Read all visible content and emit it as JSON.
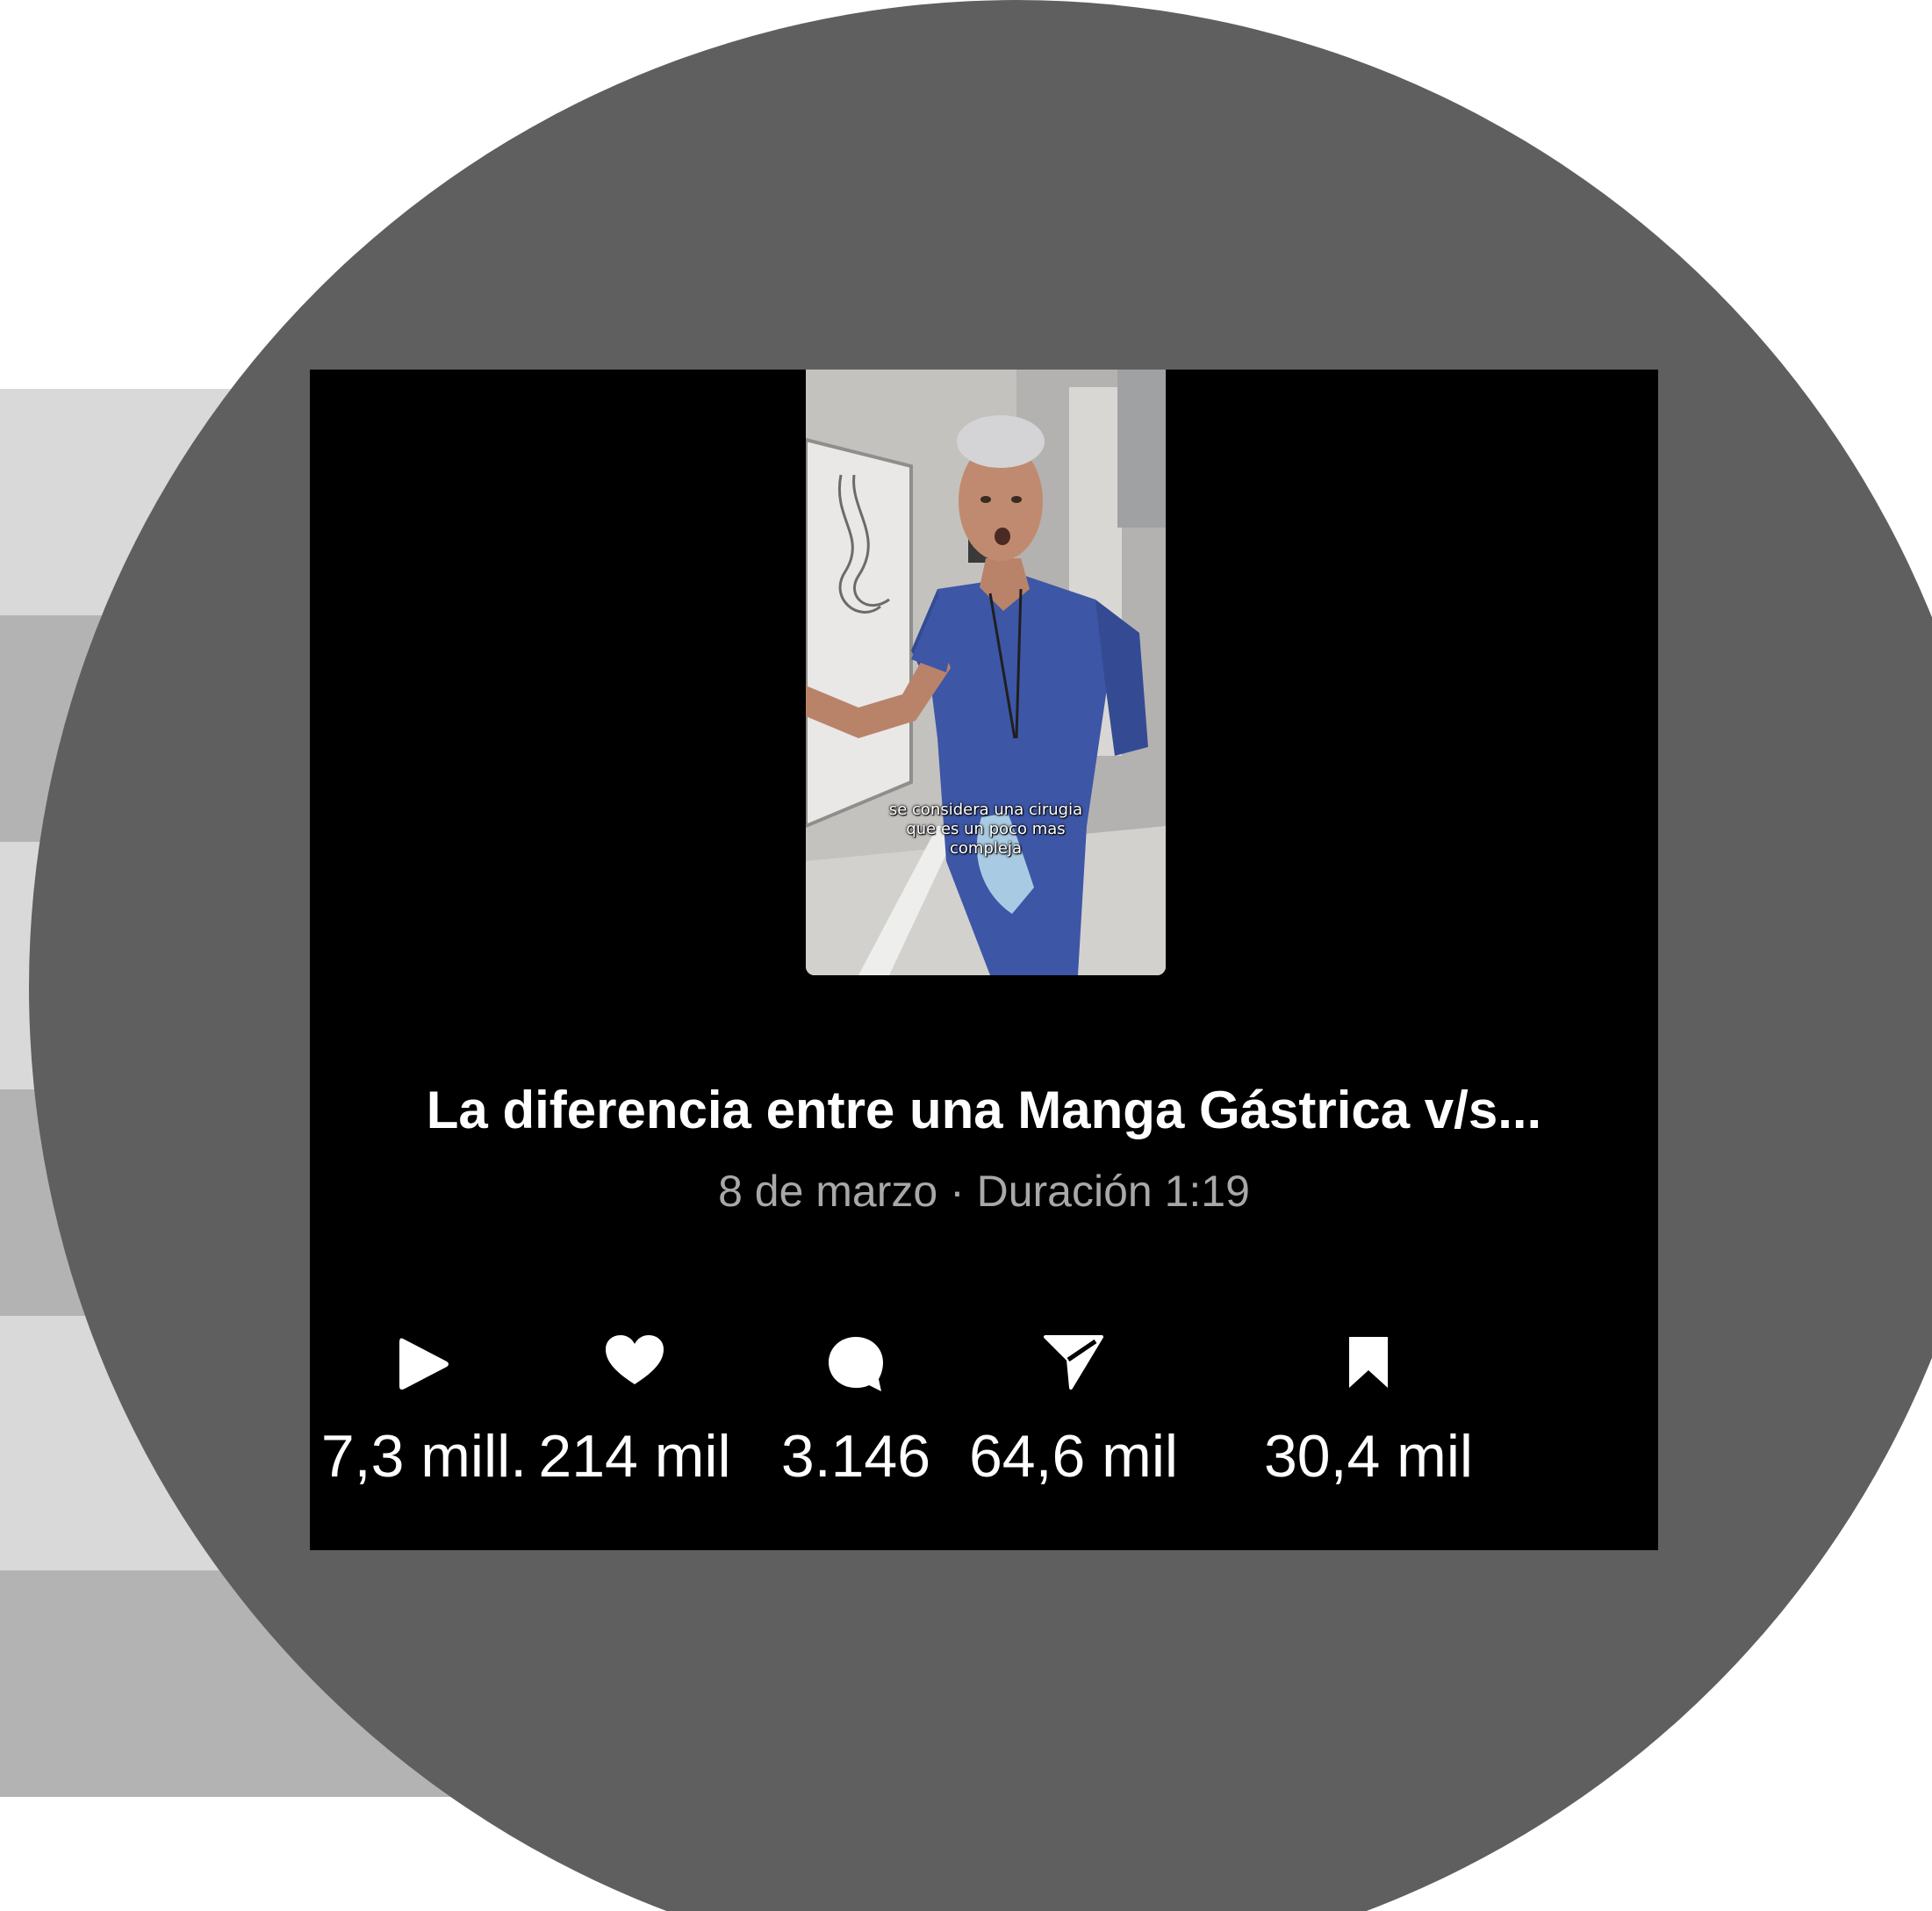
{
  "video_overlay": {
    "caption_lines": [
      "se considera una cirugia",
      "que es un poco mas",
      "compleja"
    ]
  },
  "post": {
    "title": "La diferencia entre una Manga Gástrica v/s...",
    "meta": "8 de marzo · Duración 1:19"
  },
  "stats": {
    "plays": "7,3 mill.",
    "likes": "214 mil",
    "comments": "3.146",
    "shares": "64,6 mil",
    "saves": "30,4 mil"
  },
  "icons": {
    "plays": "play-icon",
    "likes": "heart-icon",
    "comments": "comment-bubble-icon",
    "shares": "send-icon",
    "saves": "bookmark-icon"
  },
  "colors": {
    "card_background": "#000000",
    "circle_background": "#5f5f5f",
    "meta_text": "#a8a8a8",
    "scrubs": "#3d56a6"
  }
}
